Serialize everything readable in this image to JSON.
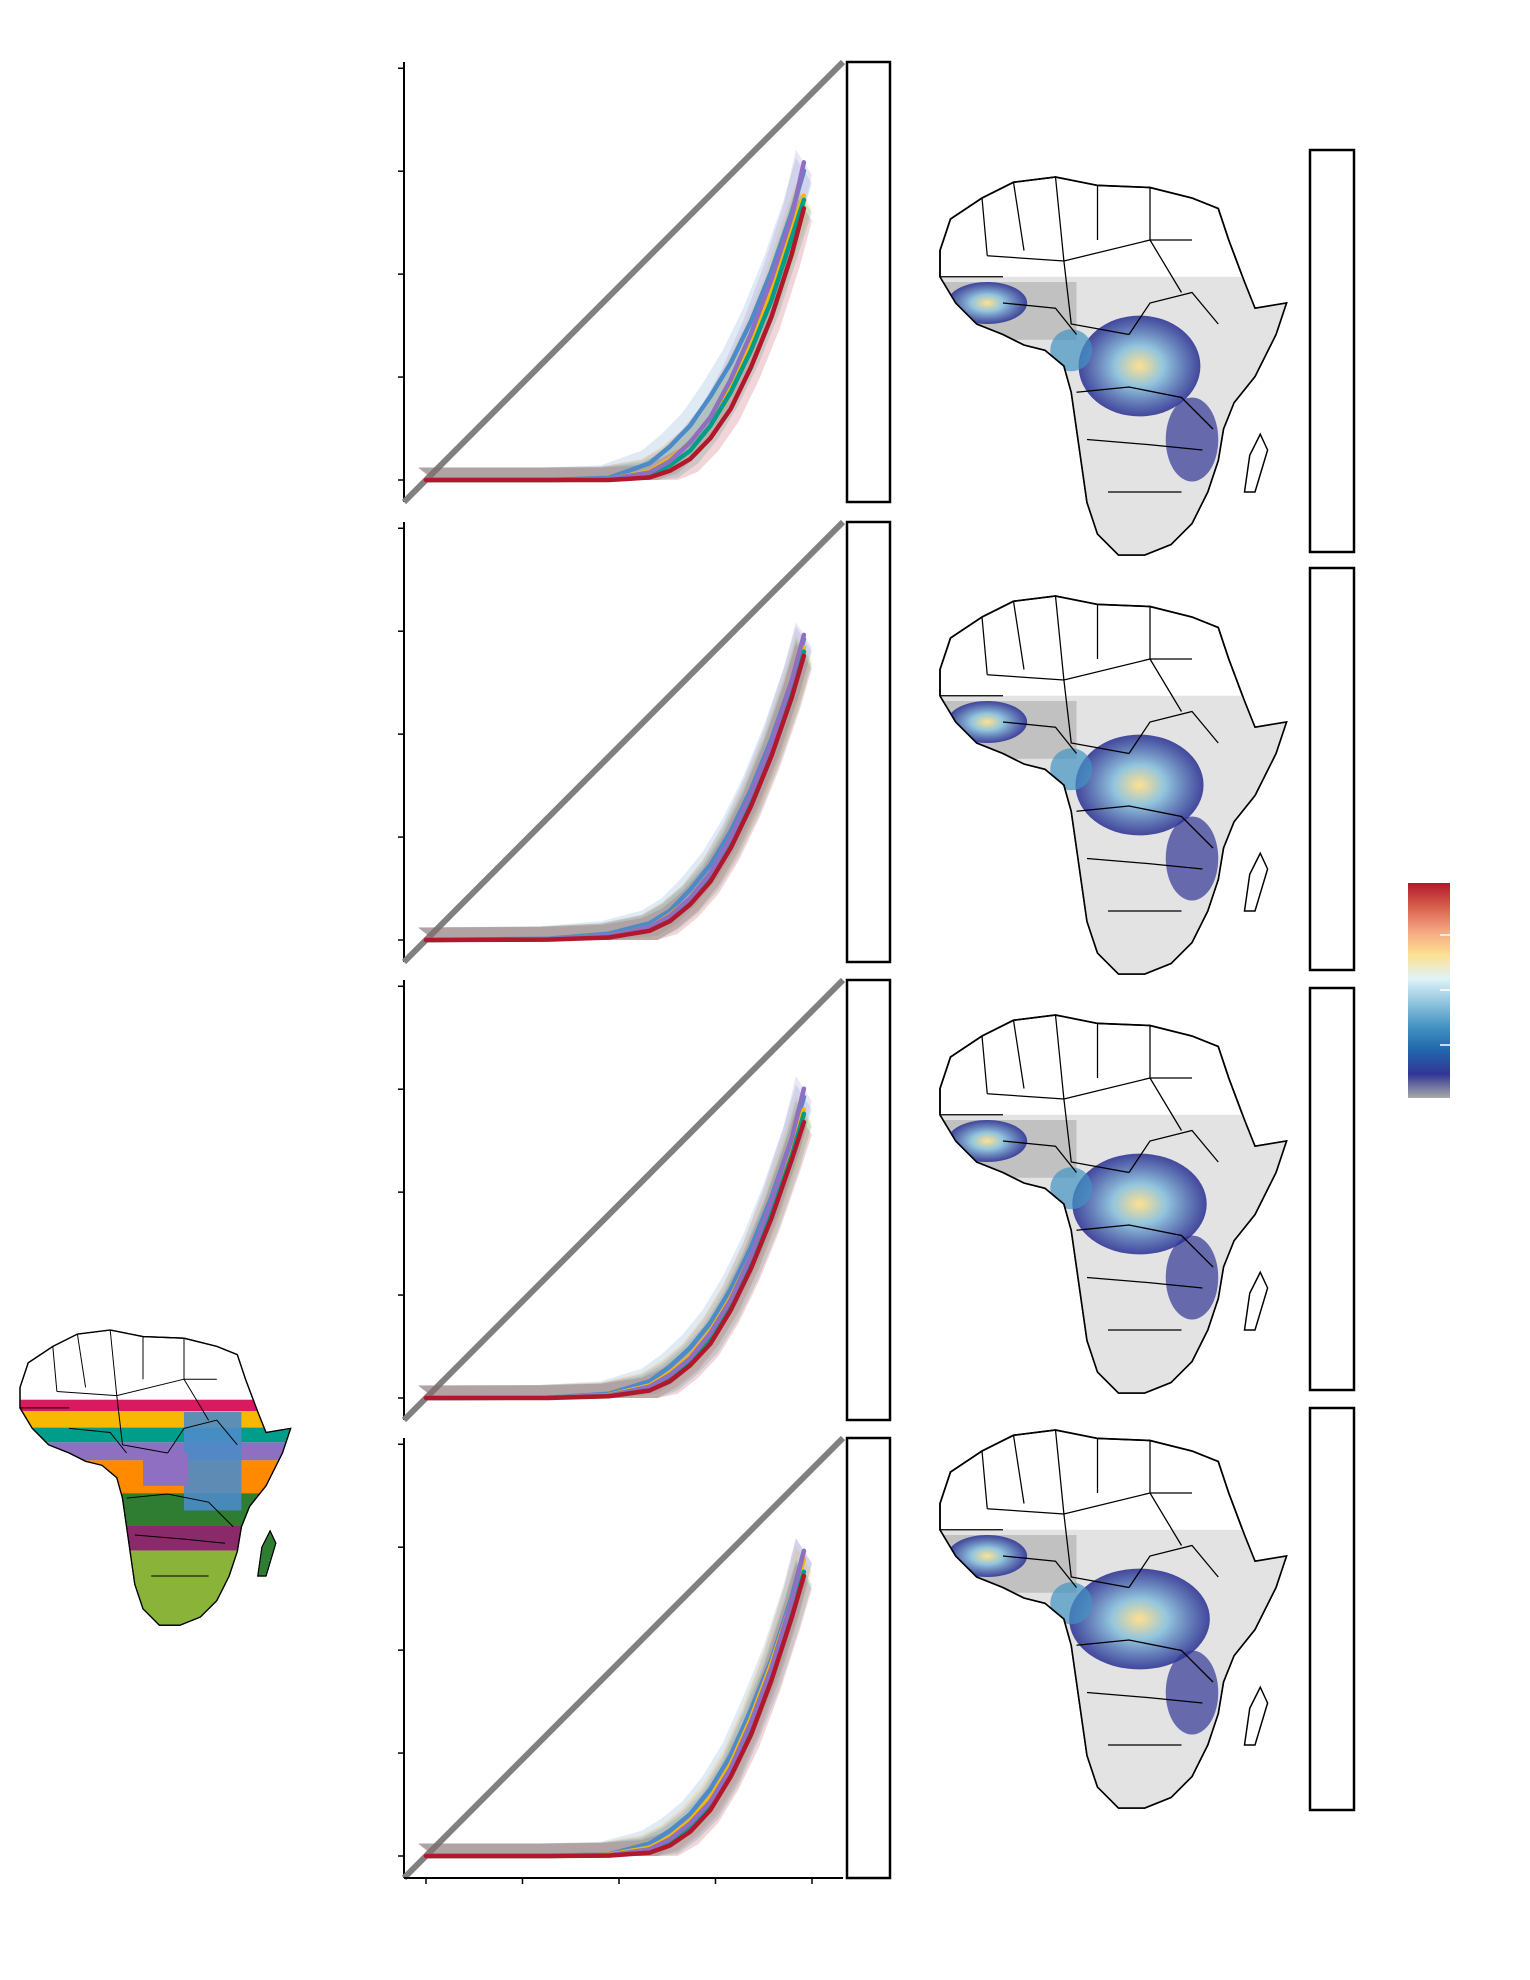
{
  "figure": {
    "legend_colors": [
      "#b2182b",
      "#d6604d",
      "#f4a582",
      "#fee090",
      "#e0f3f8",
      "#92c5de",
      "#4393c3",
      "#2166ac",
      "#313695",
      "#aaaaaa"
    ],
    "region_palette": [
      "#d81b60",
      "#f6b800",
      "#009e8a",
      "#8e6fc1",
      "#ff8a00",
      "#2e7d32",
      "#8b2a6b",
      "#8ab33a",
      "#4c8bc8"
    ]
  },
  "chart_data": [
    {
      "type": "line",
      "panel": 1,
      "title": "",
      "xlabel": "",
      "ylabel": "",
      "xlim": [
        0,
        1
      ],
      "ylim": [
        0,
        1
      ],
      "reference_line": {
        "name": "",
        "x": [
          0,
          1
        ],
        "y": [
          0,
          1
        ],
        "color": "#808080"
      },
      "x": [
        0,
        0.3,
        0.45,
        0.55,
        0.6,
        0.65,
        0.7,
        0.75,
        0.8,
        0.85,
        0.9,
        0.93
      ],
      "series": [
        {
          "color": "#4c8bc8",
          "values": [
            0,
            0,
            0.005,
            0.04,
            0.08,
            0.13,
            0.2,
            0.28,
            0.38,
            0.5,
            0.64,
            0.74
          ]
        },
        {
          "color": "#f6b800",
          "values": [
            0,
            0,
            0.002,
            0.02,
            0.05,
            0.09,
            0.15,
            0.23,
            0.33,
            0.45,
            0.6,
            0.68
          ]
        },
        {
          "color": "#009e8a",
          "values": [
            0,
            0,
            0.001,
            0.012,
            0.035,
            0.07,
            0.13,
            0.21,
            0.31,
            0.43,
            0.58,
            0.67
          ]
        },
        {
          "color": "#8e6fc1",
          "values": [
            0,
            0,
            0.002,
            0.018,
            0.045,
            0.09,
            0.15,
            0.24,
            0.35,
            0.48,
            0.63,
            0.76
          ]
        },
        {
          "color": "#b2182b",
          "values": [
            0,
            0,
            0.0,
            0.006,
            0.022,
            0.05,
            0.1,
            0.17,
            0.27,
            0.39,
            0.54,
            0.65
          ]
        }
      ]
    },
    {
      "type": "line",
      "panel": 2,
      "title": "",
      "xlabel": "",
      "ylabel": "",
      "xlim": [
        0,
        1
      ],
      "ylim": [
        0,
        1
      ],
      "reference_line": {
        "name": "",
        "x": [
          0,
          1
        ],
        "y": [
          0,
          1
        ],
        "color": "#808080"
      },
      "x": [
        0,
        0.3,
        0.45,
        0.55,
        0.6,
        0.65,
        0.7,
        0.75,
        0.8,
        0.85,
        0.9,
        0.93
      ],
      "series": [
        {
          "color": "#4c8bc8",
          "values": [
            0,
            0.003,
            0.015,
            0.04,
            0.07,
            0.12,
            0.18,
            0.26,
            0.36,
            0.48,
            0.62,
            0.72
          ]
        },
        {
          "color": "#f6b800",
          "values": [
            0,
            0.002,
            0.01,
            0.03,
            0.06,
            0.1,
            0.16,
            0.24,
            0.34,
            0.46,
            0.6,
            0.7
          ]
        },
        {
          "color": "#009e8a",
          "values": [
            0,
            0.002,
            0.009,
            0.028,
            0.055,
            0.095,
            0.15,
            0.23,
            0.33,
            0.45,
            0.59,
            0.69
          ]
        },
        {
          "color": "#8e6fc1",
          "values": [
            0,
            0.002,
            0.01,
            0.03,
            0.058,
            0.1,
            0.16,
            0.245,
            0.35,
            0.47,
            0.62,
            0.73
          ]
        },
        {
          "color": "#b2182b",
          "values": [
            0,
            0.001,
            0.006,
            0.022,
            0.045,
            0.085,
            0.14,
            0.22,
            0.32,
            0.44,
            0.58,
            0.68
          ]
        }
      ]
    },
    {
      "type": "line",
      "panel": 3,
      "title": "",
      "xlabel": "",
      "ylabel": "",
      "xlim": [
        0,
        1
      ],
      "ylim": [
        0,
        1
      ],
      "reference_line": {
        "name": "",
        "x": [
          0,
          1
        ],
        "y": [
          0,
          1
        ],
        "color": "#808080"
      },
      "x": [
        0,
        0.3,
        0.45,
        0.55,
        0.6,
        0.65,
        0.7,
        0.75,
        0.8,
        0.85,
        0.9,
        0.93
      ],
      "series": [
        {
          "color": "#4c8bc8",
          "values": [
            0,
            0.001,
            0.01,
            0.04,
            0.075,
            0.12,
            0.18,
            0.26,
            0.36,
            0.48,
            0.62,
            0.72
          ]
        },
        {
          "color": "#f6b800",
          "values": [
            0,
            0.001,
            0.007,
            0.03,
            0.06,
            0.1,
            0.16,
            0.24,
            0.34,
            0.46,
            0.6,
            0.69
          ]
        },
        {
          "color": "#009e8a",
          "values": [
            0,
            0.001,
            0.005,
            0.022,
            0.048,
            0.088,
            0.14,
            0.22,
            0.32,
            0.44,
            0.58,
            0.68
          ]
        },
        {
          "color": "#8e6fc1",
          "values": [
            0,
            0.001,
            0.006,
            0.027,
            0.055,
            0.095,
            0.155,
            0.235,
            0.34,
            0.47,
            0.62,
            0.74
          ]
        },
        {
          "color": "#b2182b",
          "values": [
            0,
            0.0,
            0.004,
            0.018,
            0.04,
            0.078,
            0.13,
            0.21,
            0.31,
            0.43,
            0.57,
            0.66
          ]
        }
      ]
    },
    {
      "type": "line",
      "panel": 4,
      "title": "",
      "xlabel": "",
      "ylabel": "",
      "xlim": [
        0,
        1
      ],
      "ylim": [
        0,
        1
      ],
      "reference_line": {
        "name": "",
        "x": [
          0,
          1
        ],
        "y": [
          0,
          1
        ],
        "color": "#808080"
      },
      "x": [
        0,
        0.3,
        0.45,
        0.55,
        0.6,
        0.65,
        0.7,
        0.75,
        0.8,
        0.85,
        0.9,
        0.93
      ],
      "series": [
        {
          "color": "#4c8bc8",
          "values": [
            0,
            0.0,
            0.004,
            0.03,
            0.06,
            0.1,
            0.16,
            0.24,
            0.35,
            0.47,
            0.62,
            0.73
          ]
        },
        {
          "color": "#f6b800",
          "values": [
            0,
            0.0,
            0.003,
            0.02,
            0.045,
            0.085,
            0.14,
            0.22,
            0.33,
            0.46,
            0.61,
            0.71
          ]
        },
        {
          "color": "#009e8a",
          "values": [
            0,
            0.0,
            0.002,
            0.012,
            0.035,
            0.07,
            0.12,
            0.2,
            0.31,
            0.43,
            0.58,
            0.68
          ]
        },
        {
          "color": "#8e6fc1",
          "values": [
            0,
            0.0,
            0.002,
            0.016,
            0.04,
            0.078,
            0.13,
            0.21,
            0.32,
            0.45,
            0.61,
            0.73
          ]
        },
        {
          "color": "#b2182b",
          "values": [
            0,
            0.0,
            0.001,
            0.008,
            0.025,
            0.058,
            0.11,
            0.19,
            0.29,
            0.42,
            0.57,
            0.67
          ]
        }
      ]
    }
  ]
}
